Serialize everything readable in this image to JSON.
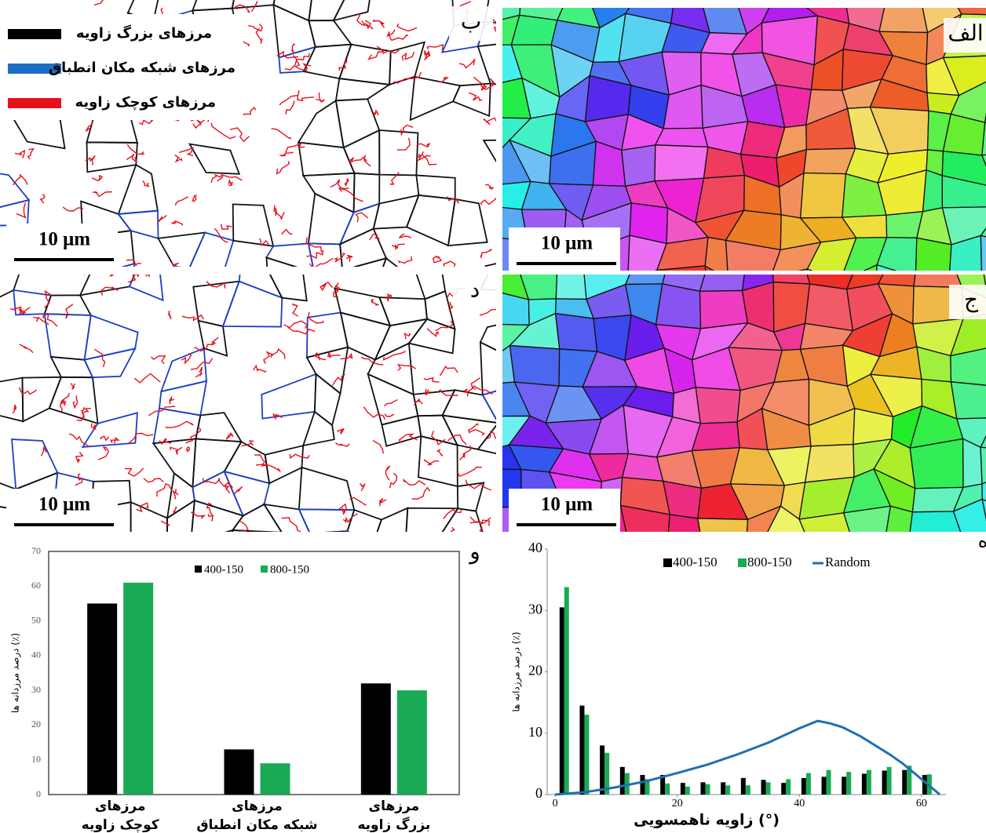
{
  "panels": [
    {
      "label": "ب",
      "scale_bar": "10 μm"
    },
    {
      "label": "الف",
      "scale_bar": "10 μm"
    },
    {
      "label": "د",
      "scale_bar": "10 μm"
    },
    {
      "label": "ج",
      "scale_bar": "10 μm"
    }
  ],
  "boundary_legend": [
    {
      "name": "مرزهای بزرگ زاویه",
      "color": "#000000"
    },
    {
      "name": "مرزهای شبکه مکان انطباق",
      "color": "#1a6fc4"
    },
    {
      "name": "مرزهای کوچک زاویه",
      "color": "#e8101c"
    }
  ],
  "chart_data": [
    {
      "type": "bar",
      "panel_label": "و",
      "y_label": "درصد مرزدانه ها (٪)",
      "categories": [
        [
          "مرزهای",
          "کوچک زاویه"
        ],
        [
          "مرزهای",
          "شبکه مکان انطباق"
        ],
        [
          "مرزهای",
          "بزرگ زاویه"
        ]
      ],
      "series": [
        {
          "name": "400-150",
          "color": "#000000",
          "values": [
            55,
            13,
            32
          ]
        },
        {
          "name": "800-150",
          "color": "#1aaa55",
          "values": [
            61,
            9,
            30
          ]
        }
      ],
      "ylim": [
        0,
        70
      ],
      "yticks": [
        0,
        10,
        20,
        30,
        40,
        50,
        60,
        70
      ],
      "legend": "top"
    },
    {
      "type": "combo",
      "panel_label": "ه",
      "y_label": "درصد مرزدانه ها (٪)",
      "x_label": "زاویه ناهمسویی (°)",
      "x": [
        1.5,
        4.8,
        8.1,
        11.4,
        14.7,
        18,
        21.3,
        24.6,
        27.9,
        31.2,
        34.5,
        37.8,
        41.1,
        44.4,
        47.7,
        51,
        54.3,
        57.6,
        60.9
      ],
      "series": [
        {
          "name": "400-150",
          "color": "#000000",
          "values": [
            30.5,
            14.5,
            8,
            4.5,
            3.2,
            3.2,
            1.9,
            2,
            2,
            2.7,
            2.4,
            1.9,
            2.7,
            2.9,
            2.9,
            3.4,
            3.9,
            4,
            3.2
          ]
        },
        {
          "name": "800-150",
          "color": "#1aaa55",
          "values": [
            33.8,
            13,
            6.8,
            3.5,
            2.5,
            1.8,
            1.3,
            1.7,
            1.5,
            1.5,
            2,
            2.5,
            3.5,
            4,
            3.7,
            4,
            4.5,
            4.7,
            3.3
          ]
        },
        {
          "name": "Random",
          "color": "#1f6fb0",
          "type": "line",
          "x": [
            0,
            5,
            10,
            15,
            20,
            25,
            30,
            35,
            40,
            43,
            45,
            47,
            50,
            55,
            57,
            60,
            63
          ],
          "values": [
            0,
            0.4,
            1.2,
            2.2,
            3.5,
            4.9,
            6.6,
            8.5,
            10.8,
            12,
            11.6,
            11,
            9.5,
            6.4,
            5,
            2.5,
            0
          ]
        }
      ],
      "xlim": [
        -1.3,
        64
      ],
      "xticks": [
        0,
        20,
        40,
        60
      ],
      "ylim": [
        0,
        40
      ],
      "yticks": [
        0,
        10,
        20,
        30,
        40
      ],
      "legend": "top"
    }
  ]
}
